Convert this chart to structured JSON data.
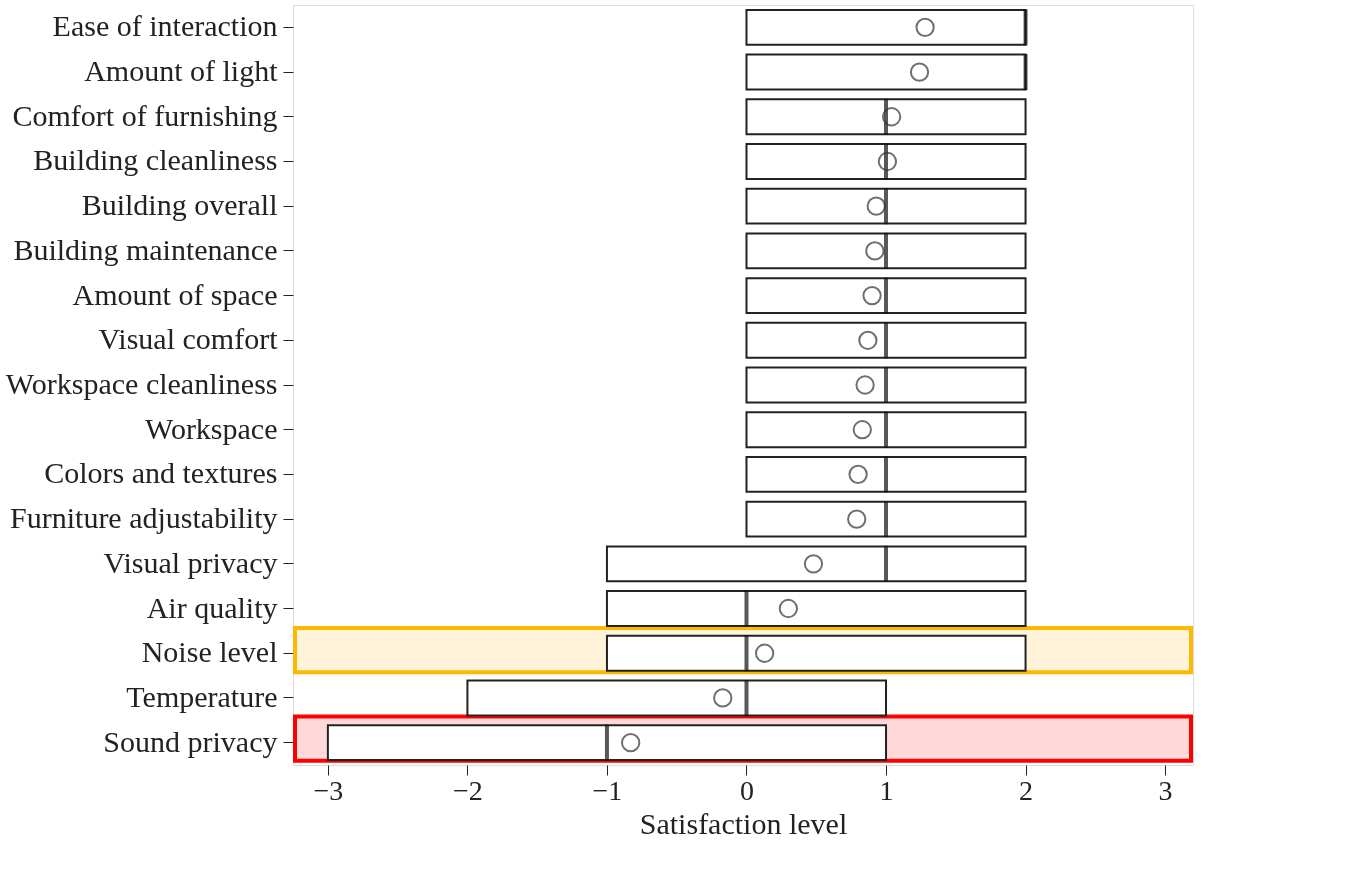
{
  "chart_data": {
    "type": "box",
    "orientation": "horizontal",
    "xlabel": "Satisfaction level",
    "categories": [
      "Ease of interaction",
      "Amount of light",
      "Comfort of furnishing",
      "Building cleanliness",
      "Building overall",
      "Building maintenance",
      "Amount of space",
      "Visual comfort",
      "Workspace cleanliness",
      "Workspace",
      "Colors and textures",
      "Furniture adjustability",
      "Visual privacy",
      "Air quality",
      "Noise level",
      "Temperature",
      "Sound privacy"
    ],
    "boxes": [
      {
        "low": 0,
        "q1": 0,
        "median": 2,
        "q3": 2,
        "high": 2,
        "mean": 1.28
      },
      {
        "low": 0,
        "q1": 0,
        "median": 2,
        "q3": 2,
        "high": 2,
        "mean": 1.24
      },
      {
        "low": 0,
        "q1": 0,
        "median": 1,
        "q3": 2,
        "high": 2,
        "mean": 1.04
      },
      {
        "low": 0,
        "q1": 0,
        "median": 1,
        "q3": 2,
        "high": 2,
        "mean": 1.01
      },
      {
        "low": 0,
        "q1": 0,
        "median": 1,
        "q3": 2,
        "high": 2,
        "mean": 0.93
      },
      {
        "low": 0,
        "q1": 0,
        "median": 1,
        "q3": 2,
        "high": 2,
        "mean": 0.92
      },
      {
        "low": 0,
        "q1": 0,
        "median": 1,
        "q3": 2,
        "high": 2,
        "mean": 0.9
      },
      {
        "low": 0,
        "q1": 0,
        "median": 1,
        "q3": 2,
        "high": 2,
        "mean": 0.87
      },
      {
        "low": 0,
        "q1": 0,
        "median": 1,
        "q3": 2,
        "high": 2,
        "mean": 0.85
      },
      {
        "low": 0,
        "q1": 0,
        "median": 1,
        "q3": 2,
        "high": 2,
        "mean": 0.83
      },
      {
        "low": 0,
        "q1": 0,
        "median": 1,
        "q3": 2,
        "high": 2,
        "mean": 0.8
      },
      {
        "low": 0,
        "q1": 0,
        "median": 1,
        "q3": 2,
        "high": 2,
        "mean": 0.79
      },
      {
        "low": -1,
        "q1": -1,
        "median": 1,
        "q3": 2,
        "high": 2,
        "mean": 0.48
      },
      {
        "low": -1,
        "q1": -1,
        "median": 0,
        "q3": 2,
        "high": 2,
        "mean": 0.3
      },
      {
        "low": -1,
        "q1": -1,
        "median": 0,
        "q3": 2,
        "high": 2,
        "mean": 0.13
      },
      {
        "low": -2,
        "q1": -2,
        "median": 0,
        "q3": 1,
        "high": 1,
        "mean": -0.17
      },
      {
        "low": -3,
        "q1": -3,
        "median": -1,
        "q3": 1,
        "high": 1,
        "mean": -0.83
      }
    ],
    "color": "#ffffff",
    "xlim": [
      -3.25,
      3.2
    ],
    "xticks": [
      -3,
      -2,
      -1,
      0,
      1,
      2,
      3
    ],
    "marker": "circle",
    "grid": false,
    "bands": [
      {
        "axis": "y",
        "from": "Noise level",
        "to": "Noise level",
        "color": "#ffb800"
      },
      {
        "axis": "y",
        "from": "Sound privacy",
        "to": "Sound privacy",
        "color": "#ff0000"
      }
    ]
  }
}
